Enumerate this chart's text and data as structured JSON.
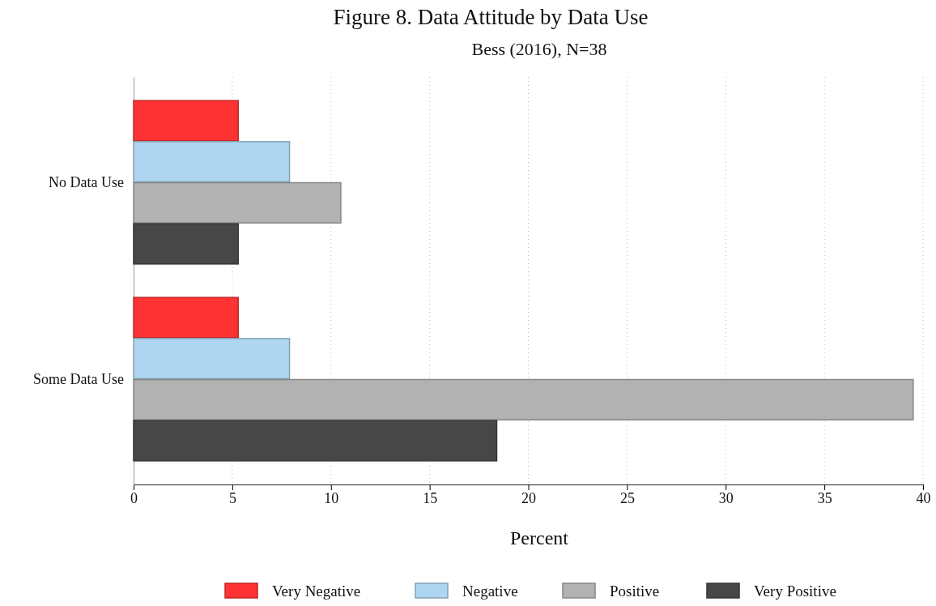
{
  "chart_data": {
    "type": "bar",
    "orientation": "horizontal",
    "title": "Figure 8. Data Attitude by Data Use",
    "subtitle": "Bess (2016), N=38",
    "xlabel": "Percent",
    "categories": [
      "No Data Use",
      "Some Data Use"
    ],
    "series": [
      {
        "name": "Very Negative",
        "color": "#ff3333",
        "values": [
          5.3,
          5.3
        ]
      },
      {
        "name": "Negative",
        "color": "#afd6f0",
        "values": [
          7.9,
          7.9
        ]
      },
      {
        "name": "Positive",
        "color": "#b2b2b2",
        "values": [
          10.5,
          39.5
        ]
      },
      {
        "name": "Very Positive",
        "color": "#474747",
        "values": [
          5.3,
          18.4
        ]
      }
    ],
    "xlim": [
      0,
      40
    ],
    "xticks": [
      0,
      5,
      10,
      15,
      20,
      25,
      30,
      35,
      40
    ],
    "grid": "x",
    "legend": "bottom"
  }
}
